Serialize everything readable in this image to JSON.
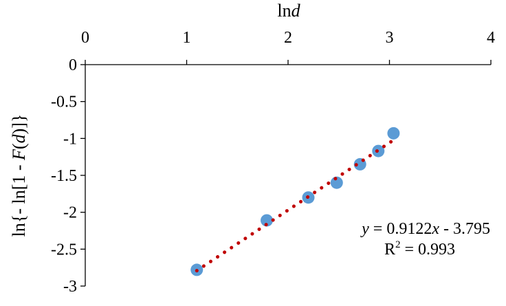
{
  "chart_data": {
    "type": "scatter",
    "title": "",
    "xlabel": {
      "prefix": "ln",
      "var": "d"
    },
    "ylabel": {
      "part1": "ln{- ln[1 - ",
      "var": "F",
      "part2": "(",
      "var2": "d",
      "part3": ")]}"
    },
    "x_axis_position": "top",
    "xlim": [
      0,
      4
    ],
    "ylim": [
      -3,
      0
    ],
    "xticks": [
      0,
      1,
      2,
      3,
      4
    ],
    "yticks": [
      0,
      -0.5,
      -1,
      -1.5,
      -2,
      -2.5,
      -3
    ],
    "xtick_labels": [
      "0",
      "1",
      "2",
      "3",
      "4"
    ],
    "ytick_labels": [
      "0",
      "-0.5",
      "-1",
      "-1.5",
      "-2",
      "-2.5",
      "-3"
    ],
    "grid": false,
    "points": [
      {
        "x": 1.1,
        "y": -2.78
      },
      {
        "x": 1.79,
        "y": -2.11
      },
      {
        "x": 2.2,
        "y": -1.8
      },
      {
        "x": 2.48,
        "y": -1.6
      },
      {
        "x": 2.71,
        "y": -1.35
      },
      {
        "x": 2.89,
        "y": -1.17
      },
      {
        "x": 3.04,
        "y": -0.93
      }
    ],
    "point_color": "#5b9bd5",
    "trendline": {
      "slope": 0.9122,
      "intercept": -3.795,
      "x_range": [
        1.1,
        3.04
      ],
      "color": "#c00000",
      "style": "dotted",
      "equation": {
        "var": "y",
        "text": " = 0.9122",
        "xvar": "x",
        "rest": " - 3.795"
      },
      "r2": {
        "R": "R",
        "sup": "2",
        "rest": " = 0.993"
      }
    }
  }
}
